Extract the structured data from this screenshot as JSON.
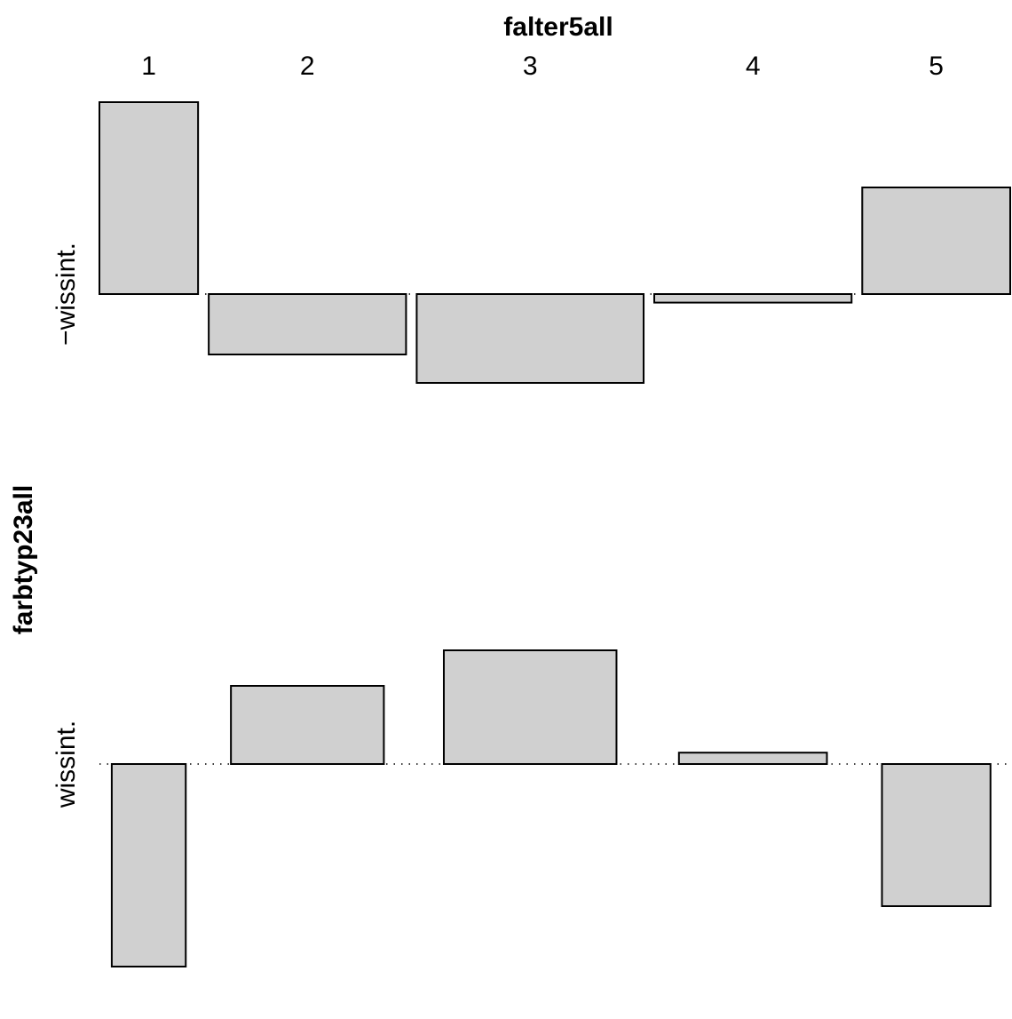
{
  "chart_data": {
    "type": "bar",
    "subtype": "association-plot",
    "x_variable": "falter5all",
    "y_variable": "farbtyp23all",
    "x_categories": [
      "1",
      "2",
      "3",
      "4",
      "5"
    ],
    "y_categories": [
      "−wissint.",
      "wissint."
    ],
    "column_widths": [
      1.0,
      2.0,
      2.3,
      2.0,
      1.5
    ],
    "residual_scale": [
      -3,
      3
    ],
    "rows": [
      {
        "label": "−wissint.",
        "widths": [
          1.0,
          2.0,
          2.3,
          2.0,
          1.5
        ],
        "residuals": [
          2.7,
          -0.85,
          -1.25,
          -0.12,
          1.5
        ]
      },
      {
        "label": "wissint.",
        "widths": [
          0.75,
          1.55,
          1.75,
          1.5,
          1.1
        ],
        "residuals": [
          -2.85,
          1.1,
          1.6,
          0.16,
          -2.0
        ]
      }
    ],
    "bar_fill": "#d0d0d0",
    "bar_stroke": "#000000",
    "legend": "none",
    "grid": false
  }
}
